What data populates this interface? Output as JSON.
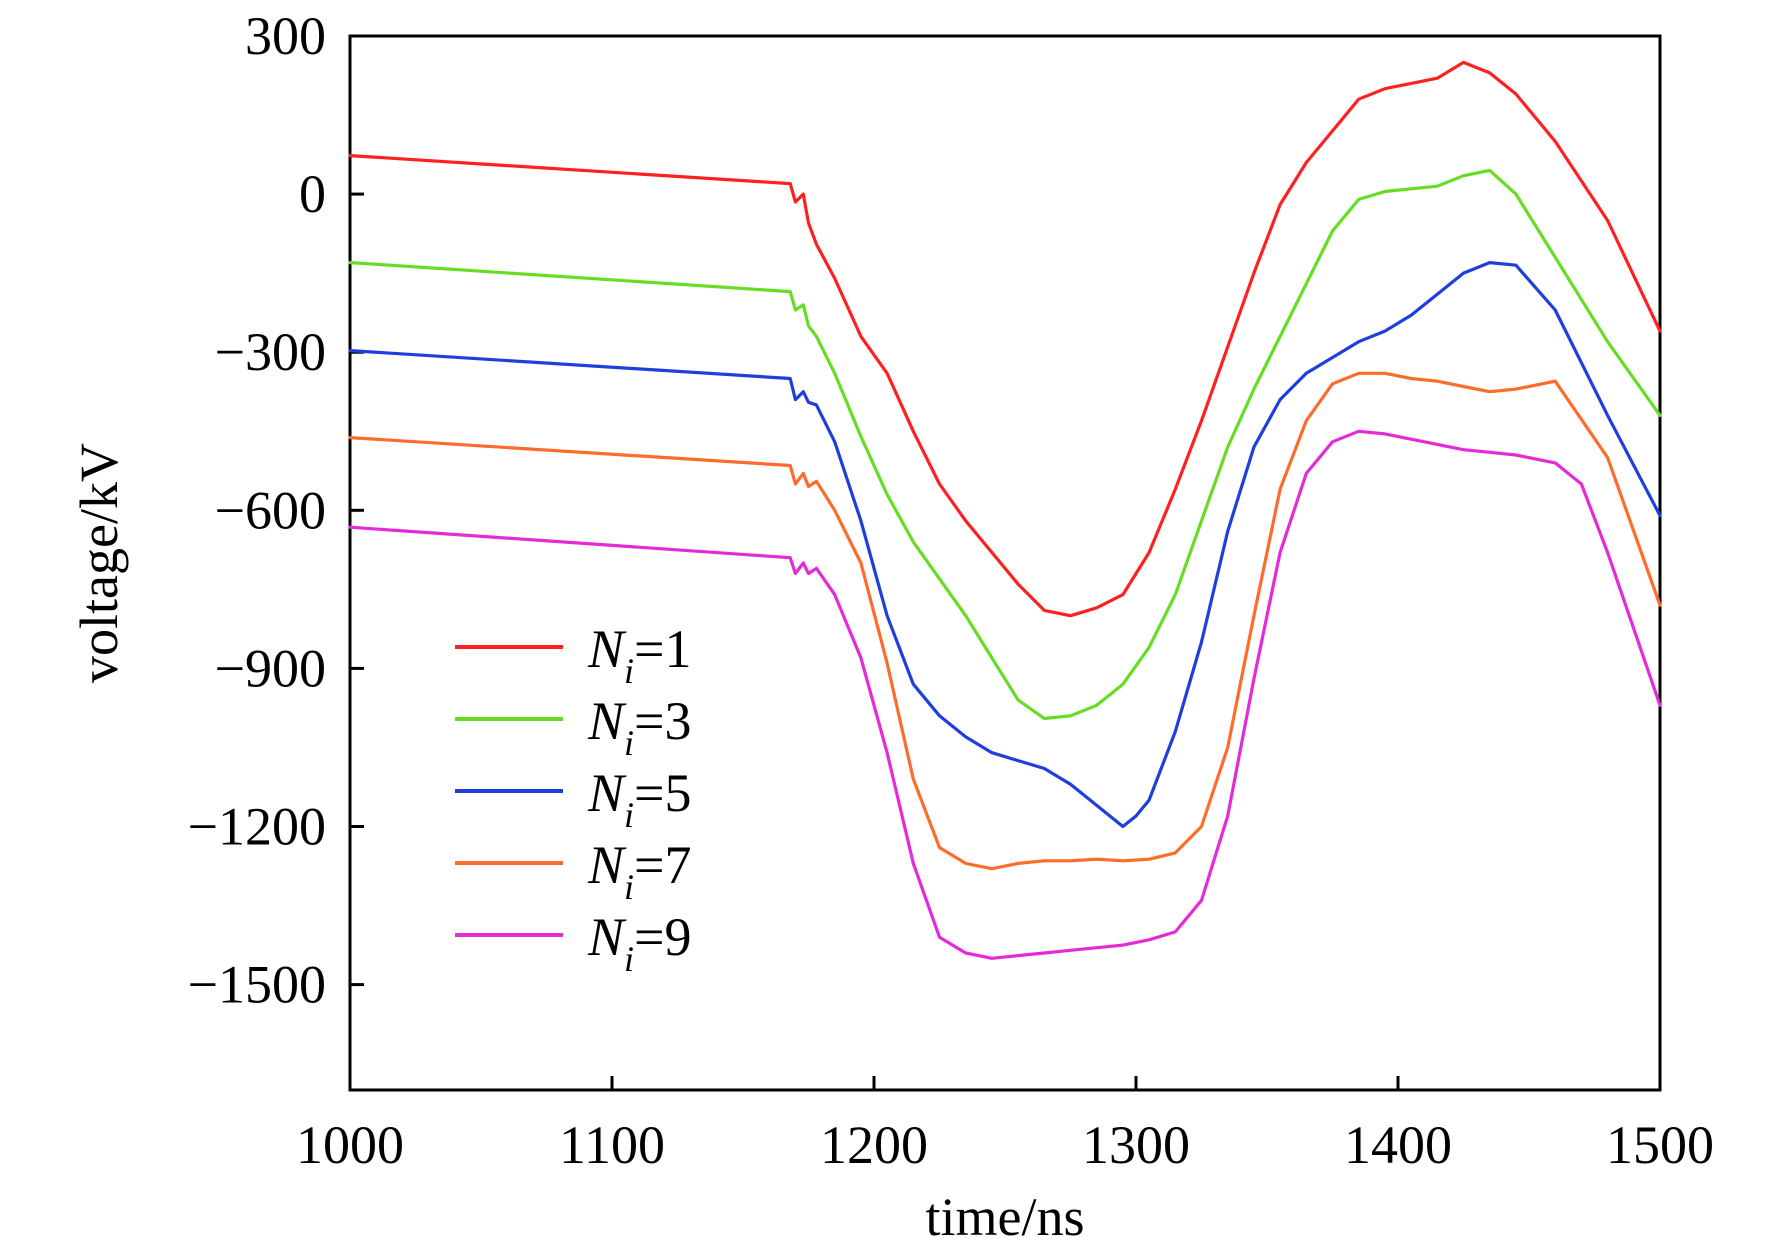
{
  "chart_data": {
    "type": "line",
    "title": "",
    "xlabel": "time/ns",
    "ylabel": "voltage/kV",
    "xlim": [
      1000,
      1500
    ],
    "ylim": [
      -1700,
      300
    ],
    "x_ticks": [
      1000,
      1100,
      1200,
      1300,
      1400,
      1500
    ],
    "x_tick_labels": [
      "1000",
      "1100",
      "1200",
      "1300",
      "1400",
      "1500"
    ],
    "y_ticks": [
      300,
      0,
      -300,
      -600,
      -900,
      -1200,
      -1500
    ],
    "y_tick_labels": [
      "300",
      "0",
      "−300",
      "−600",
      "−900",
      "−1200",
      "−1500"
    ],
    "grid": false,
    "legend_position": "lower-left",
    "series": [
      {
        "name": "Ni=1",
        "label_var": "N",
        "label_sub": "i",
        "label_value": "=1",
        "color": "#ff2020",
        "x": [
          1000,
          1168,
          1170,
          1173,
          1175,
          1178,
          1185,
          1195,
          1205,
          1215,
          1225,
          1235,
          1245,
          1255,
          1265,
          1275,
          1285,
          1295,
          1305,
          1315,
          1325,
          1335,
          1345,
          1355,
          1365,
          1375,
          1385,
          1395,
          1405,
          1415,
          1425,
          1435,
          1445,
          1460,
          1480,
          1500
        ],
        "y": [
          73,
          20,
          -15,
          0,
          -55,
          -95,
          -160,
          -270,
          -340,
          -450,
          -550,
          -620,
          -680,
          -740,
          -790,
          -800,
          -785,
          -760,
          -680,
          -560,
          -430,
          -290,
          -150,
          -20,
          60,
          120,
          180,
          200,
          210,
          220,
          250,
          230,
          190,
          100,
          -50,
          -260
        ]
      },
      {
        "name": "Ni=3",
        "label_var": "N",
        "label_sub": "i",
        "label_value": "=3",
        "color": "#66dd22",
        "x": [
          1000,
          1168,
          1170,
          1173,
          1175,
          1178,
          1185,
          1195,
          1205,
          1215,
          1225,
          1235,
          1245,
          1255,
          1265,
          1275,
          1285,
          1295,
          1305,
          1315,
          1325,
          1335,
          1345,
          1355,
          1365,
          1375,
          1385,
          1395,
          1405,
          1415,
          1425,
          1435,
          1445,
          1460,
          1480,
          1500
        ],
        "y": [
          -130,
          -185,
          -220,
          -210,
          -250,
          -270,
          -340,
          -460,
          -570,
          -660,
          -730,
          -800,
          -880,
          -960,
          -995,
          -990,
          -970,
          -930,
          -860,
          -760,
          -620,
          -480,
          -370,
          -270,
          -170,
          -70,
          -10,
          5,
          10,
          15,
          35,
          45,
          0,
          -120,
          -280,
          -420
        ]
      },
      {
        "name": "Ni=5",
        "label_var": "N",
        "label_sub": "i",
        "label_value": "=5",
        "color": "#1f3fdd",
        "x": [
          1000,
          1168,
          1170,
          1173,
          1175,
          1178,
          1185,
          1195,
          1205,
          1215,
          1225,
          1235,
          1245,
          1255,
          1265,
          1275,
          1285,
          1295,
          1300,
          1305,
          1315,
          1325,
          1335,
          1345,
          1355,
          1365,
          1375,
          1385,
          1395,
          1405,
          1415,
          1425,
          1435,
          1445,
          1460,
          1480,
          1500
        ],
        "y": [
          -297,
          -350,
          -390,
          -375,
          -395,
          -400,
          -470,
          -620,
          -800,
          -930,
          -990,
          -1030,
          -1060,
          -1075,
          -1090,
          -1120,
          -1160,
          -1200,
          -1180,
          -1150,
          -1020,
          -850,
          -640,
          -480,
          -390,
          -340,
          -310,
          -280,
          -260,
          -230,
          -190,
          -150,
          -130,
          -135,
          -220,
          -420,
          -610
        ]
      },
      {
        "name": "Ni=7",
        "label_var": "N",
        "label_sub": "i",
        "label_value": "=7",
        "color": "#ff6b2a",
        "x": [
          1000,
          1168,
          1170,
          1173,
          1175,
          1178,
          1185,
          1195,
          1205,
          1215,
          1225,
          1235,
          1245,
          1255,
          1265,
          1275,
          1285,
          1295,
          1305,
          1315,
          1325,
          1335,
          1345,
          1355,
          1365,
          1375,
          1385,
          1395,
          1405,
          1415,
          1425,
          1435,
          1445,
          1460,
          1480,
          1500
        ],
        "y": [
          -462,
          -515,
          -550,
          -530,
          -555,
          -545,
          -600,
          -700,
          -890,
          -1110,
          -1240,
          -1270,
          -1280,
          -1270,
          -1265,
          -1265,
          -1262,
          -1265,
          -1262,
          -1250,
          -1200,
          -1050,
          -800,
          -560,
          -430,
          -360,
          -340,
          -340,
          -350,
          -355,
          -365,
          -375,
          -370,
          -355,
          -500,
          -780
        ]
      },
      {
        "name": "Ni=9",
        "label_var": "N",
        "label_sub": "i",
        "label_value": "=9",
        "color": "#e52ad8",
        "x": [
          1000,
          1168,
          1170,
          1173,
          1175,
          1178,
          1185,
          1195,
          1205,
          1215,
          1225,
          1235,
          1245,
          1255,
          1265,
          1275,
          1285,
          1295,
          1305,
          1315,
          1325,
          1335,
          1345,
          1355,
          1365,
          1375,
          1385,
          1395,
          1405,
          1415,
          1425,
          1435,
          1445,
          1460,
          1470,
          1480,
          1500
        ],
        "y": [
          -632,
          -690,
          -720,
          -700,
          -720,
          -710,
          -760,
          -880,
          -1060,
          -1270,
          -1410,
          -1440,
          -1450,
          -1445,
          -1440,
          -1435,
          -1430,
          -1425,
          -1415,
          -1400,
          -1340,
          -1180,
          -920,
          -680,
          -530,
          -470,
          -450,
          -455,
          -465,
          -475,
          -485,
          -490,
          -495,
          -510,
          -550,
          -680,
          -970
        ]
      }
    ]
  }
}
